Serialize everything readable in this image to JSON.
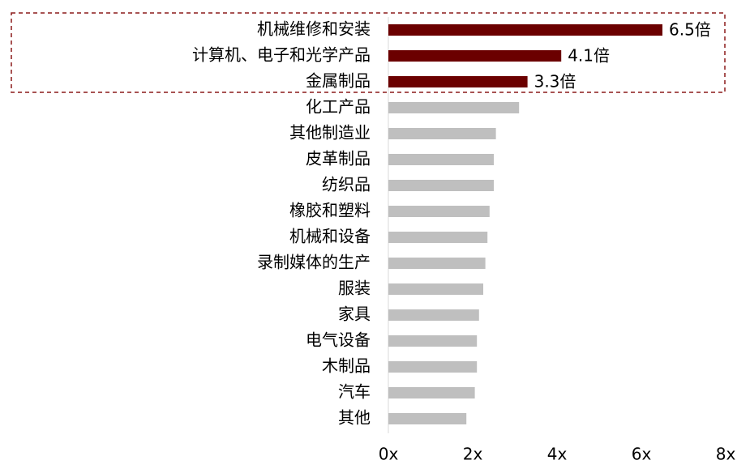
{
  "chart_data": {
    "type": "hbar",
    "categories": [
      "机械维修和安装",
      "计算机、电子和光学产品",
      "金属制品",
      "化工产品",
      "其他制造业",
      "皮革制品",
      "纺织品",
      "橡胶和塑料",
      "机械和设备",
      "录制媒体的生产",
      "服装",
      "家具",
      "电气设备",
      "木制品",
      "汽车",
      "其他"
    ],
    "values": [
      6.5,
      4.1,
      3.3,
      3.1,
      2.55,
      2.5,
      2.5,
      2.4,
      2.35,
      2.3,
      2.25,
      2.15,
      2.1,
      2.1,
      2.05,
      1.85
    ],
    "value_labels": [
      "6.5倍",
      "4.1倍",
      "3.3倍",
      null,
      null,
      null,
      null,
      null,
      null,
      null,
      null,
      null,
      null,
      null,
      null,
      null
    ],
    "colors": [
      "#6b0000",
      "#6b0000",
      "#6b0000",
      "#bfbfbf",
      "#bfbfbf",
      "#bfbfbf",
      "#bfbfbf",
      "#bfbfbf",
      "#bfbfbf",
      "#bfbfbf",
      "#bfbfbf",
      "#bfbfbf",
      "#bfbfbf",
      "#bfbfbf",
      "#bfbfbf",
      "#bfbfbf"
    ],
    "xlim": [
      0,
      8
    ],
    "xticks": [
      {
        "value": 0,
        "label": "0x"
      },
      {
        "value": 2,
        "label": "2x"
      },
      {
        "value": 4,
        "label": "4x"
      },
      {
        "value": 6,
        "label": "6x"
      },
      {
        "value": 8,
        "label": "8x"
      }
    ]
  }
}
